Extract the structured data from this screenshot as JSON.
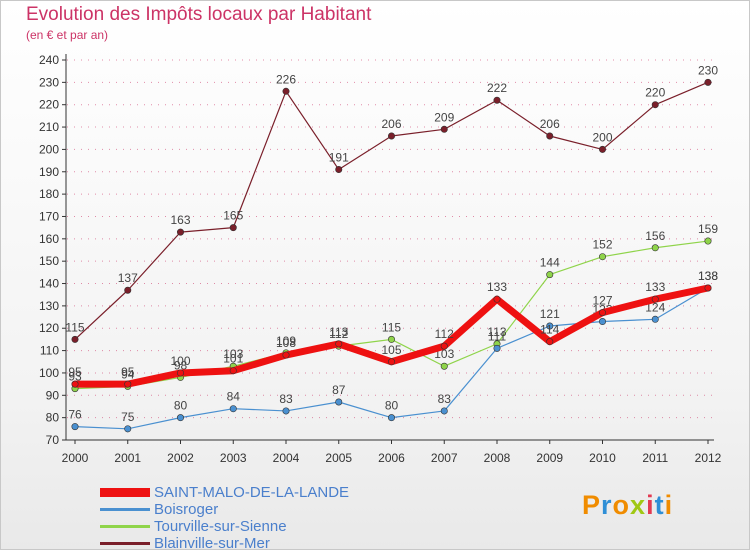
{
  "header": {
    "title": "Evolution des Impôts locaux par Habitant",
    "subtitle": "(en € et par an)"
  },
  "logo": {
    "text": "Proxiti",
    "colors": [
      "#f08c00",
      "#2f8fd6",
      "#f08c00",
      "#a0c814",
      "#e23a52",
      "#2f8fd6",
      "#f08c00"
    ]
  },
  "colors": {
    "axis": "#333333",
    "grid_tick": "#cc3366",
    "value_label": "#444444"
  },
  "chart_data": {
    "type": "line",
    "title": "Evolution des Impôts locaux par Habitant",
    "subtitle": "(en € et par an)",
    "xlabel": "",
    "ylabel": "",
    "x": [
      "2000",
      "2001",
      "2002",
      "2003",
      "2004",
      "2005",
      "2006",
      "2007",
      "2008",
      "2009",
      "2010",
      "2011",
      "2012"
    ],
    "ylim": [
      70,
      240
    ],
    "yticks": [
      70,
      80,
      90,
      100,
      110,
      120,
      130,
      140,
      150,
      160,
      170,
      180,
      190,
      200,
      210,
      220,
      230,
      240
    ],
    "legend_position": "bottom-left",
    "series": [
      {
        "name": "Blainville-sur-Mer",
        "color": "#7a1f2a",
        "width": 1.2,
        "values": [
          115,
          137,
          163,
          165,
          226,
          191,
          206,
          209,
          222,
          206,
          200,
          220,
          230
        ]
      },
      {
        "name": "Tourville-sur-Sienne",
        "color": "#8fd44a",
        "width": 1.2,
        "values": [
          93,
          94,
          98,
          103,
          109,
          112,
          115,
          103,
          113,
          144,
          152,
          156,
          159
        ]
      },
      {
        "name": "Boisroger",
        "color": "#4a90d0",
        "width": 1.2,
        "values": [
          76,
          75,
          80,
          84,
          83,
          87,
          80,
          83,
          111,
          121,
          123,
          124,
          138
        ]
      },
      {
        "name": "SAINT-MALO-DE-LA-LANDE",
        "color": "#ee1111",
        "width": 7,
        "values": [
          95,
          95,
          100,
          101,
          108,
          113,
          105,
          112,
          133,
          114,
          127,
          133,
          138
        ]
      }
    ],
    "legend_order": [
      "SAINT-MALO-DE-LA-LANDE",
      "Boisroger",
      "Tourville-sur-Sienne",
      "Blainville-sur-Mer"
    ]
  }
}
